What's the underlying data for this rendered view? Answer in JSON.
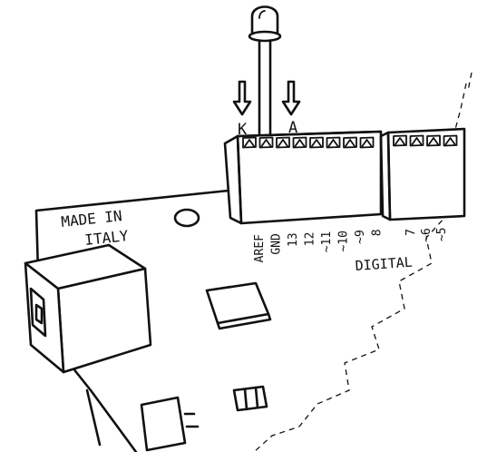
{
  "board": {
    "made_in_line1": "MADE IN",
    "made_in_line2": "ITALY",
    "digital_label": "DIGITAL"
  },
  "led": {
    "cathode_label": "K",
    "anode_label": "A"
  },
  "header_pins": [
    "AREF",
    "GND",
    "13",
    "12",
    "~11",
    "~10",
    "~9",
    "8"
  ],
  "header2_pins": [
    "7",
    "~6",
    "~5"
  ]
}
